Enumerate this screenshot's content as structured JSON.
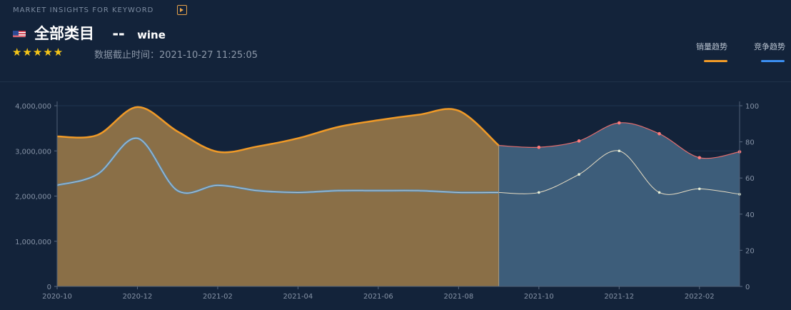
{
  "header": {
    "kicker": "MARKET INSIGHTS FOR KEYWORD",
    "category": "全部类目",
    "separator": "--",
    "keyword": "wine",
    "rating": 4.5,
    "stars": "★★★★★",
    "updated": "数据截止时间：2021-10-27 11:25:05"
  },
  "legend": [
    {
      "label": "销量趋势",
      "color": "#f09a27"
    },
    {
      "label": "竞争趋势",
      "color": "#3b8ef0"
    }
  ],
  "chart_data": {
    "type": "area",
    "x": [
      "2020-10",
      "2020-11",
      "2020-12",
      "2021-01",
      "2021-02",
      "2021-03",
      "2021-04",
      "2021-05",
      "2021-06",
      "2021-07",
      "2021-08",
      "2021-09",
      "2021-10",
      "2021-11",
      "2021-12",
      "2022-01",
      "2022-02",
      "2022-03"
    ],
    "x_tick_labels": [
      "2020-10",
      "2020-12",
      "2021-02",
      "2021-04",
      "2021-06",
      "2021-08",
      "2021-10",
      "2021-12",
      "2022-02"
    ],
    "forecast_start": "2021-09",
    "y_left": {
      "ticks": [
        "0",
        "1,000,000",
        "2,000,000",
        "3,000,000",
        "4,000,000"
      ],
      "range": [
        0,
        4000000
      ]
    },
    "y_right": {
      "ticks": [
        "0",
        "20",
        "40",
        "60",
        "80",
        "100"
      ],
      "range": [
        0,
        100
      ]
    },
    "series": [
      {
        "name": "销量趋势",
        "axis": "left",
        "color": "#f09a27",
        "values": [
          3320000,
          3350000,
          3970000,
          3430000,
          2980000,
          3100000,
          3280000,
          3530000,
          3680000,
          3800000,
          3890000,
          3120000,
          3080000,
          3220000,
          3620000,
          3380000,
          2850000,
          2980000
        ]
      },
      {
        "name": "竞争趋势",
        "axis": "right",
        "color": "#3b8ef0",
        "values": [
          56,
          62,
          82,
          53,
          56,
          53,
          52,
          53,
          53,
          53,
          52,
          52,
          52,
          62,
          75,
          52,
          54,
          51
        ]
      }
    ]
  }
}
